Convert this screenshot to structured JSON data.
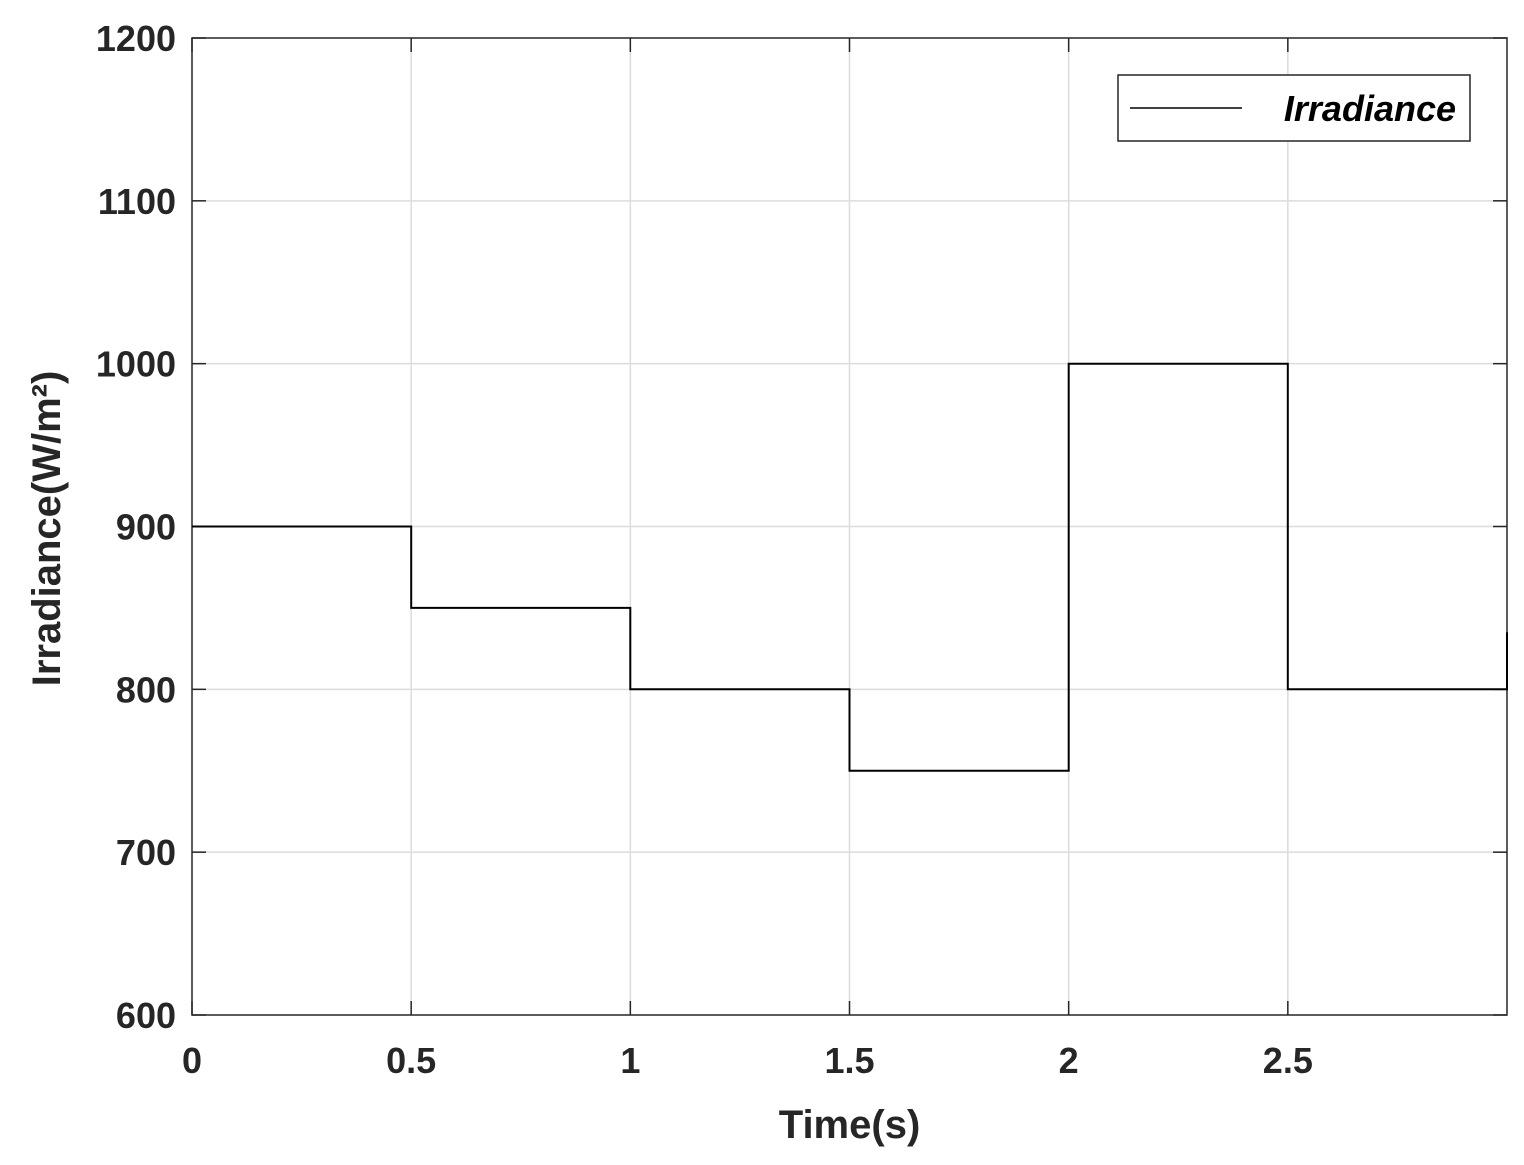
{
  "chart_data": {
    "type": "line",
    "step": true,
    "xlabel": "Time(s)",
    "ylabel": "Irradiance(W/m²)",
    "xlim": [
      0,
      3
    ],
    "ylim": [
      600,
      1200
    ],
    "xticks": [
      0,
      0.5,
      1,
      1.5,
      2,
      2.5
    ],
    "xtick_labels": [
      "0",
      "0.5",
      "1",
      "1.5",
      "2",
      "2.5"
    ],
    "yticks": [
      600,
      700,
      800,
      900,
      1000,
      1100,
      1200
    ],
    "ytick_labels": [
      "600",
      "700",
      "800",
      "900",
      "1000",
      "1100",
      "1200"
    ],
    "grid": true,
    "legend_position": "top-right",
    "series": [
      {
        "name": "Irradiance",
        "color": "#000000",
        "x": [
          0,
          0.5,
          0.5,
          1,
          1,
          1.5,
          1.5,
          2,
          2,
          2.5,
          2.5,
          3,
          3
        ],
        "y": [
          900,
          900,
          850,
          850,
          800,
          800,
          750,
          750,
          1000,
          1000,
          800,
          800,
          835
        ]
      }
    ]
  }
}
